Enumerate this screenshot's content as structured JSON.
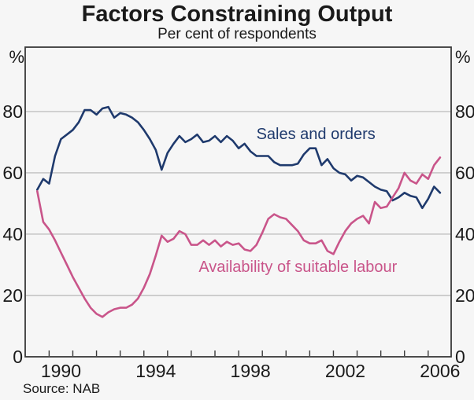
{
  "header": {
    "title": "Factors Constraining Output",
    "subtitle": "Per cent of respondents"
  },
  "footer": {
    "source": "Source: NAB"
  },
  "colors": {
    "sales": "#1f3a6d",
    "labour": "#c9558a",
    "grid": "#b5b5b5",
    "frame": "#3a3a3a",
    "text": "#1a1a1a",
    "background": "#f6f6f6"
  },
  "chart_data": {
    "type": "line",
    "title": "Factors Constraining Output",
    "subtitle": "Per cent of respondents",
    "unit_left": "%",
    "unit_right": "%",
    "grid": "horizontal",
    "xlim": [
      1988.99,
      2006.97
    ],
    "ylim": [
      0,
      101
    ],
    "y_ticks": [
      0,
      20,
      40,
      60,
      80
    ],
    "year_tick_start": 1990,
    "year_tick_end": 2006,
    "x_tick_labels": [
      1990,
      1994,
      1998,
      2002,
      2006
    ],
    "x_start": 1989.5,
    "x_step": 0.25,
    "frequency": "quarterly",
    "series": [
      {
        "name": "Sales and orders",
        "color": "#1f3a6d",
        "values": [
          54.5,
          58,
          56.5,
          65.5,
          71,
          72.5,
          74,
          76.5,
          80.5,
          80.5,
          79,
          81,
          81.5,
          78,
          79.5,
          79,
          78,
          76.5,
          74,
          71,
          67.5,
          61,
          66.5,
          69.5,
          72,
          70,
          71,
          72.5,
          70,
          70.5,
          72,
          70,
          72,
          70.5,
          68,
          69.5,
          67,
          65.5,
          65.5,
          65.5,
          63.5,
          62.5,
          62.5,
          62.5,
          63,
          66,
          68,
          68,
          62.5,
          64.5,
          61.5,
          60,
          59.5,
          57.5,
          59,
          58.5,
          57,
          55.5,
          54.5,
          54,
          51,
          52,
          53.5,
          52.5,
          52,
          48.5,
          51.5,
          55.5,
          53.5
        ]
      },
      {
        "name": "Availability of suitable labour",
        "color": "#c9558a",
        "values": [
          54,
          44,
          41.5,
          38,
          34,
          30,
          26,
          22.5,
          19,
          16,
          14,
          13,
          14.5,
          15.5,
          16,
          16,
          17,
          19,
          22.5,
          27,
          33,
          39.5,
          37.5,
          38.5,
          41,
          40,
          36.5,
          36.5,
          38,
          36.5,
          38,
          36,
          37.5,
          36.5,
          37,
          35,
          34.5,
          36.5,
          40.5,
          45,
          46.5,
          45.5,
          45,
          43,
          41,
          38,
          37,
          37,
          38,
          34.5,
          33.5,
          37.5,
          41,
          43.5,
          45,
          46,
          43.5,
          50.5,
          48.5,
          49,
          52,
          55,
          60,
          57.5,
          56.5,
          59.5,
          58,
          62.5,
          65
        ]
      }
    ],
    "annotations": [
      {
        "text": "Sales and orders",
        "x": 2001.26,
        "y": 72.8,
        "series": 0
      },
      {
        "text": "Availability of suitable labour",
        "x": 2000.5,
        "y": 29.5,
        "series": 1
      }
    ]
  }
}
